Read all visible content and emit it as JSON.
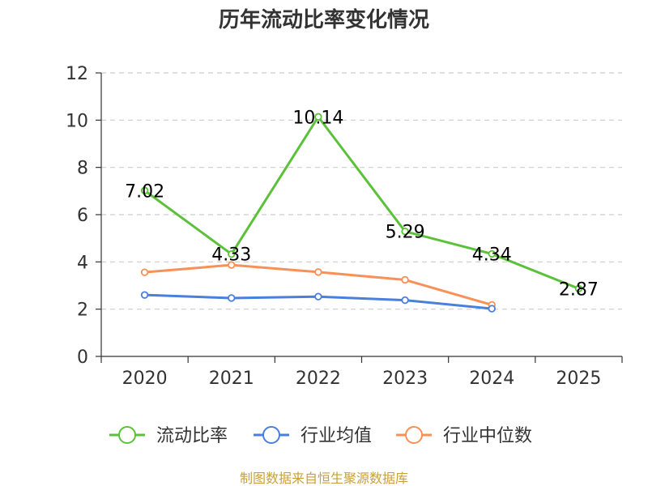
{
  "chart_data": {
    "type": "line",
    "title": "历年流动比率变化情况",
    "categories": [
      "2020",
      "2021",
      "2022",
      "2023",
      "2024",
      "2025"
    ],
    "ylim": [
      0,
      12
    ],
    "yticks": [
      0,
      2,
      4,
      6,
      8,
      10,
      12
    ],
    "grid": true,
    "legend_position": "bottom",
    "series": [
      {
        "name": "流动比率",
        "color": "#5cc13a",
        "values": [
          7.02,
          4.33,
          10.14,
          5.29,
          4.34,
          2.87
        ],
        "labels": [
          "7.02",
          "4.33",
          "10.14",
          "5.29",
          "4.34",
          "2.87"
        ]
      },
      {
        "name": "行业均值",
        "color": "#4a7fdc",
        "values": [
          2.6,
          2.47,
          2.53,
          2.38,
          2.02,
          null
        ]
      },
      {
        "name": "行业中位数",
        "color": "#f79158",
        "values": [
          3.56,
          3.87,
          3.57,
          3.24,
          2.18,
          null
        ]
      }
    ]
  },
  "footer": {
    "source": "制图数据来自恒生聚源数据库"
  }
}
